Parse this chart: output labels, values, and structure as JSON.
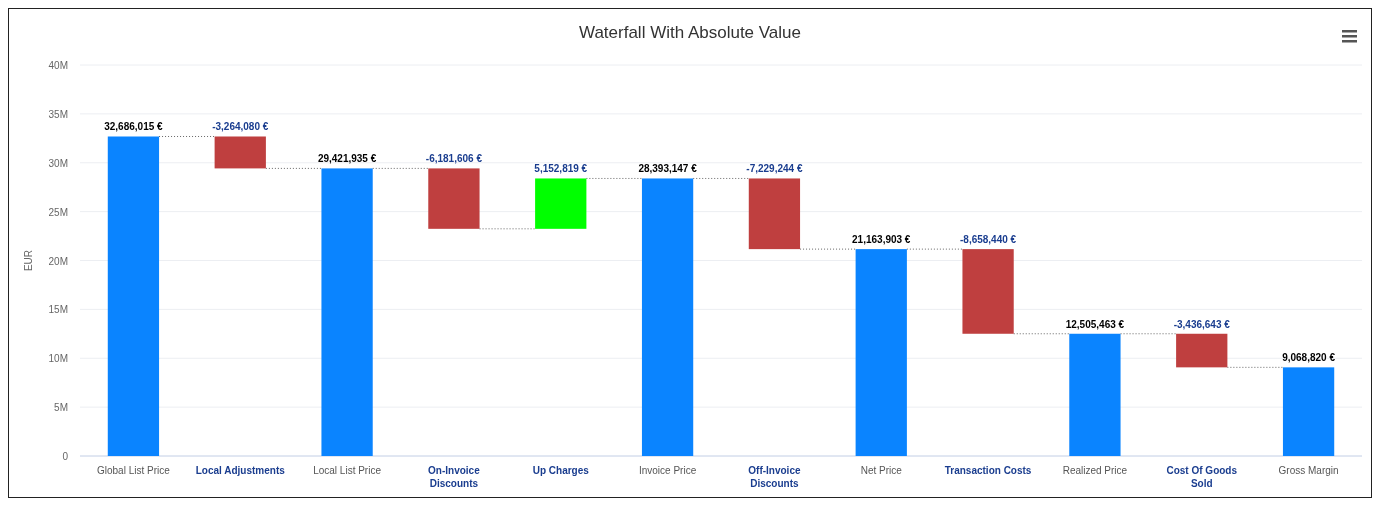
{
  "chart_data": {
    "type": "bar",
    "title": "Waterfall With Absolute Value",
    "ylabel": "EUR",
    "categories": [
      "Global List Price",
      "Local Adjustments",
      "Local List Price",
      "On-Invoice Discounts",
      "Up Charges",
      "Invoice Price",
      "Off-Invoice Discounts",
      "Net Price",
      "Transaction Costs",
      "Realized Price",
      "Cost Of Goods Sold",
      "Gross Margin"
    ],
    "values": [
      32686015,
      -3264080,
      29421935,
      -6181606,
      5152819,
      28393147,
      -7229244,
      21163903,
      -8658440,
      12505463,
      -3436643,
      9068820
    ],
    "base": [
      0,
      32686015,
      0,
      29421935,
      23240329,
      0,
      28393147,
      0,
      21163903,
      0,
      12505463,
      0
    ],
    "colors": [
      "#0a84ff",
      "#bf3f3f",
      "#0a84ff",
      "#bf3f3f",
      "#00ff00",
      "#0a84ff",
      "#bf3f3f",
      "#0a84ff",
      "#bf3f3f",
      "#0a84ff",
      "#bf3f3f",
      "#0a84ff"
    ],
    "value_labels": [
      "32,686,015 €",
      "-3,264,080 €",
      "29,421,935 €",
      "-6,181,606 €",
      "5,152,819 €",
      "28,393,147 €",
      "-7,229,244 €",
      "21,163,903 €",
      "-8,658,440 €",
      "12,505,463 €",
      "-3,436,643 €",
      "9,068,820 €"
    ],
    "ylim": [
      0,
      40000000
    ],
    "yticks": [
      {
        "value": 0,
        "label": "0"
      },
      {
        "value": 5000000,
        "label": "5M"
      },
      {
        "value": 10000000,
        "label": "10M"
      },
      {
        "value": 15000000,
        "label": "15M"
      },
      {
        "value": 20000000,
        "label": "20M"
      },
      {
        "value": 25000000,
        "label": "25M"
      },
      {
        "value": 30000000,
        "label": "30M"
      },
      {
        "value": 35000000,
        "label": "35M"
      },
      {
        "value": 40000000,
        "label": "40M"
      }
    ],
    "grid": "y"
  }
}
